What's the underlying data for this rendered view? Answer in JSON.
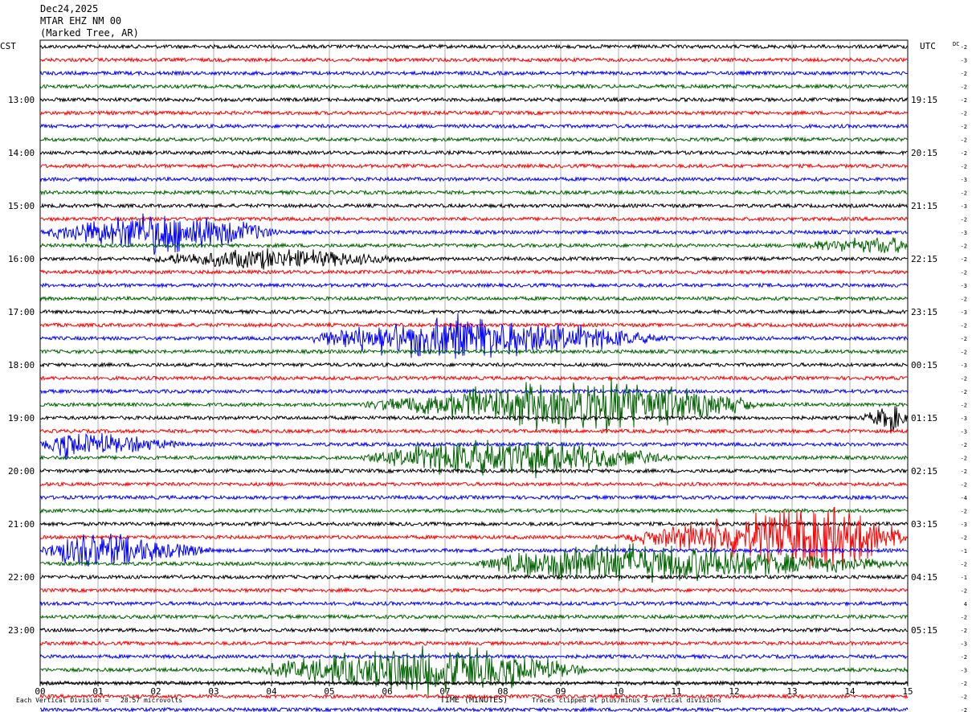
{
  "header": {
    "date": "Dec24,2025",
    "station": "MTAR EHZ NM 00",
    "location": "(Marked Tree, AR)"
  },
  "chart_data": {
    "type": "heatmap",
    "left_axis_label": "CST",
    "right_axis_label": "UTC",
    "dc_label": "DC",
    "xlabel": "TIME (MINUTES)",
    "x_ticks": [
      "00",
      "01",
      "02",
      "03",
      "04",
      "05",
      "06",
      "07",
      "08",
      "09",
      "10",
      "11",
      "12",
      "13",
      "14",
      "15"
    ],
    "xlim": [
      0,
      15
    ],
    "left_hour_labels": [
      "13:00",
      "14:00",
      "15:00",
      "16:00",
      "17:00",
      "18:00",
      "19:00",
      "20:00",
      "21:00",
      "22:00",
      "23:00"
    ],
    "right_hour_labels": [
      "19:15",
      "20:15",
      "21:15",
      "22:15",
      "23:15",
      "00:15",
      "01:15",
      "02:15",
      "03:15",
      "04:15",
      "05:15"
    ],
    "first_labeled_row": 4,
    "rows_per_hour": 4,
    "trace_colors": [
      "#000000",
      "#ff0000",
      "#0000ff",
      "#006400"
    ],
    "dc_offsets": [
      "-2",
      "-3",
      "-2",
      "-2",
      "-2",
      "-2",
      "-2",
      "-2",
      "-2",
      "-2",
      "-3",
      "-2",
      "-3",
      "-2",
      "-3",
      "-2",
      "-2",
      "-2",
      "-3",
      "-2",
      "-3",
      "-2",
      "-2",
      "-2",
      "-3",
      "-2",
      "-2",
      "-2",
      "-3",
      "-3",
      "-2",
      "-2",
      "-2",
      "-2",
      "-4",
      "-2",
      "-3",
      "-2",
      "-1",
      "-2",
      "-1",
      "-2",
      "4",
      "-2",
      "-2",
      "-3",
      "-2",
      "-3",
      "-2",
      "-2",
      "-2",
      "-2",
      "-2"
    ],
    "events": [
      {
        "row": 14,
        "start_min": 0.0,
        "end_min": 4.2,
        "peak_min": 2.2,
        "amplitude": 30
      },
      {
        "row": 16,
        "start_min": 1.8,
        "end_min": 6.5,
        "peak_min": 3.8,
        "amplitude": 14
      },
      {
        "row": 15,
        "start_min": 13.0,
        "end_min": 15.0,
        "peak_min": 14.8,
        "amplitude": 12
      },
      {
        "row": 22,
        "start_min": 4.5,
        "end_min": 11.0,
        "peak_min": 7.0,
        "amplitude": 32
      },
      {
        "row": 27,
        "start_min": 5.5,
        "end_min": 12.5,
        "peak_min": 9.8,
        "amplitude": 40
      },
      {
        "row": 28,
        "start_min": 14.2,
        "end_min": 15.0,
        "peak_min": 14.8,
        "amplitude": 18
      },
      {
        "row": 30,
        "start_min": 0.0,
        "end_min": 2.5,
        "peak_min": 0.4,
        "amplitude": 18
      },
      {
        "row": 31,
        "start_min": 5.5,
        "end_min": 11.0,
        "peak_min": 7.8,
        "amplitude": 30
      },
      {
        "row": 37,
        "start_min": 10.0,
        "end_min": 15.0,
        "peak_min": 13.8,
        "amplitude": 45
      },
      {
        "row": 38,
        "start_min": 0.0,
        "end_min": 3.0,
        "peak_min": 0.8,
        "amplitude": 26
      },
      {
        "row": 39,
        "start_min": 7.5,
        "end_min": 15.0,
        "peak_min": 9.5,
        "amplitude": 30
      },
      {
        "row": 47,
        "start_min": 3.5,
        "end_min": 9.5,
        "peak_min": 7.0,
        "amplitude": 35
      }
    ],
    "footer_scale": "Each Vertical Division =   28.57 microvolts",
    "footer_clip": "Traces clipped at plus/minus 5 vertical divisions"
  }
}
